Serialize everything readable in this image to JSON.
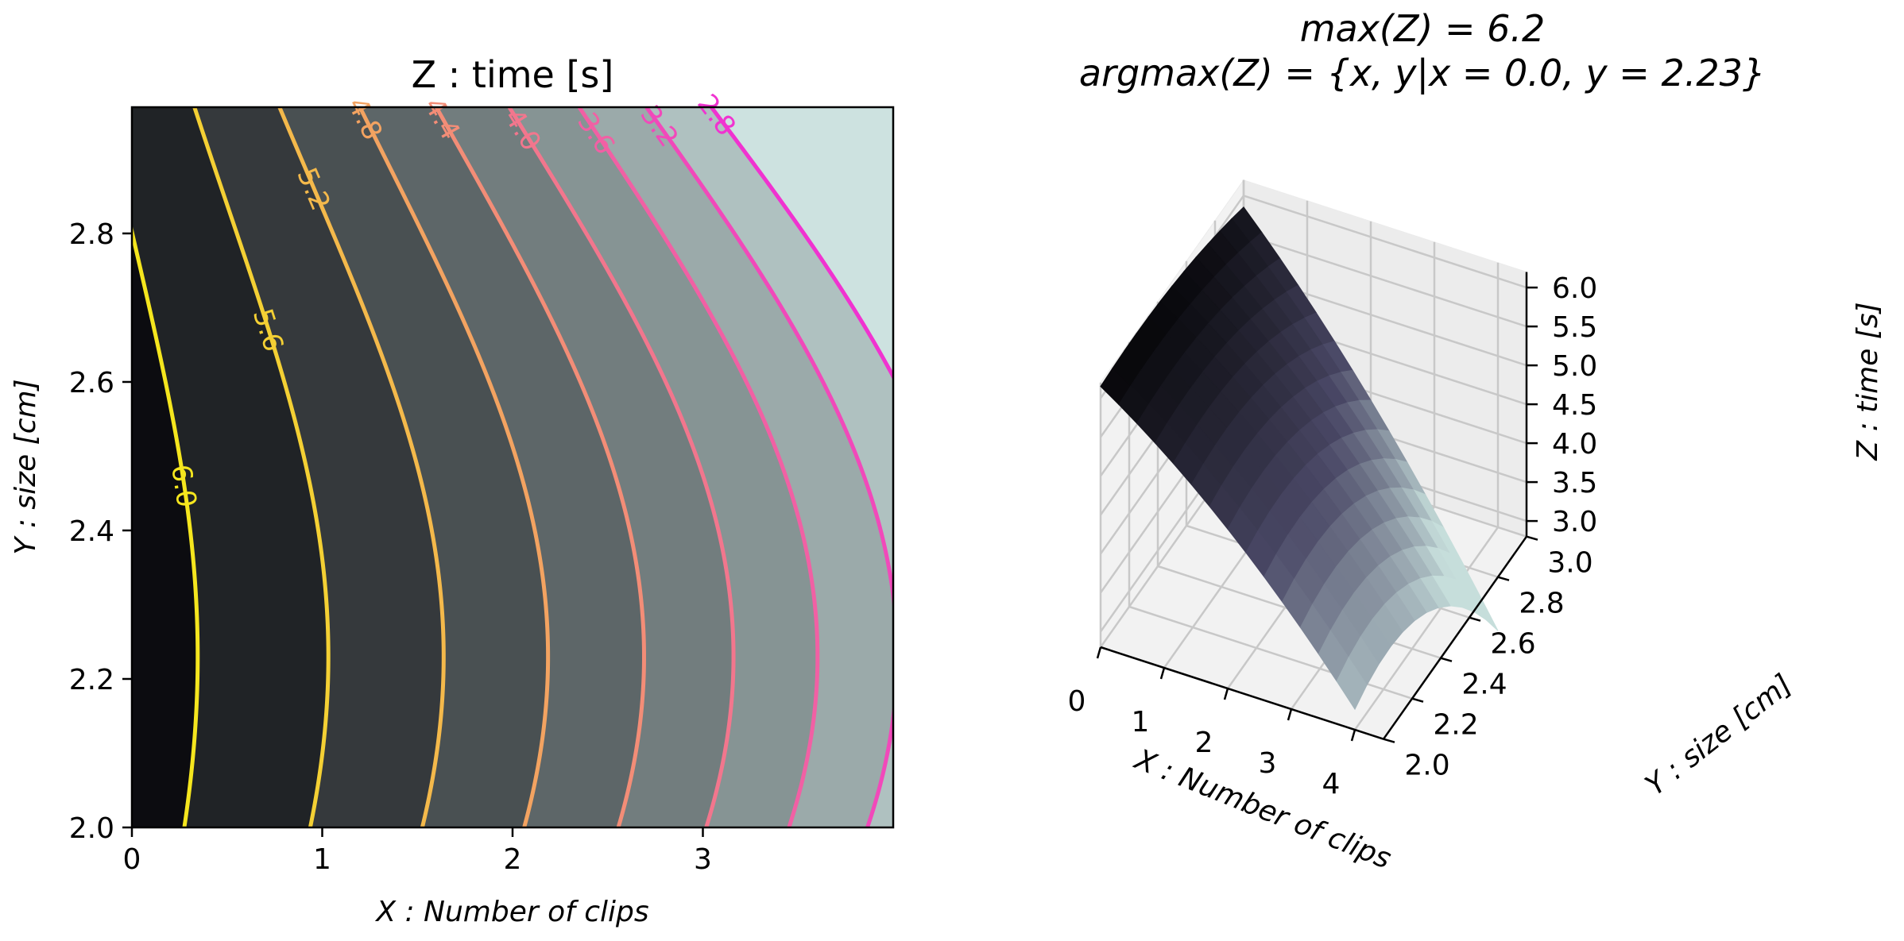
{
  "figure": {
    "left_title": "Z :  time [s]",
    "right_title_line1": "max(Z) = 6.2",
    "right_title_line2": "argmax(Z) = {x, y|x = 0.0, y = 2.23}"
  },
  "chart_data": [
    {
      "type": "contour",
      "title": "Z :  time [s]",
      "xlabel": "X :  Number of clips",
      "ylabel": "Y :  size [cm]",
      "xlim": [
        0,
        4
      ],
      "ylim": [
        2.0,
        2.97
      ],
      "xticks": [
        "0",
        "1",
        "2",
        "3"
      ],
      "yticks": [
        "2.0",
        "2.2",
        "2.4",
        "2.6",
        "2.8"
      ],
      "contour_levels": [
        6.0,
        5.6,
        5.2,
        4.8,
        4.4,
        4.0,
        3.6,
        3.2,
        2.8
      ],
      "contour_labels": [
        "6.0",
        "5.6",
        "5.2",
        "4.8",
        "4.4",
        "4.0",
        "3.6",
        "3.2",
        "2.8"
      ],
      "max_z": 6.2,
      "argmax": {
        "x": 0.0,
        "y": 2.23
      },
      "colors": {
        "fill_low": "#cde2e0",
        "fill_high": "#0c0c10",
        "line_low": "#f033d0",
        "line_high": "#f5e61e"
      }
    },
    {
      "type": "surface3d",
      "title": "max(Z) = 6.2 / argmax(Z) = {x, y|x = 0.0, y = 2.23}",
      "xlabel": "X :  Number of clips",
      "ylabel": "Y :  size [cm]",
      "zlabel": "Z :  time [s]",
      "xlim": [
        0,
        4
      ],
      "ylim": [
        2.0,
        3.0
      ],
      "zlim": [
        2.8,
        6.2
      ],
      "xticks": [
        "0",
        "1",
        "2",
        "3",
        "4"
      ],
      "yticks": [
        "2.0",
        "2.2",
        "2.4",
        "2.6",
        "2.8",
        "3.0"
      ],
      "zticks": [
        "3.0",
        "3.5",
        "4.0",
        "4.5",
        "5.0",
        "5.5",
        "6.0"
      ]
    }
  ]
}
